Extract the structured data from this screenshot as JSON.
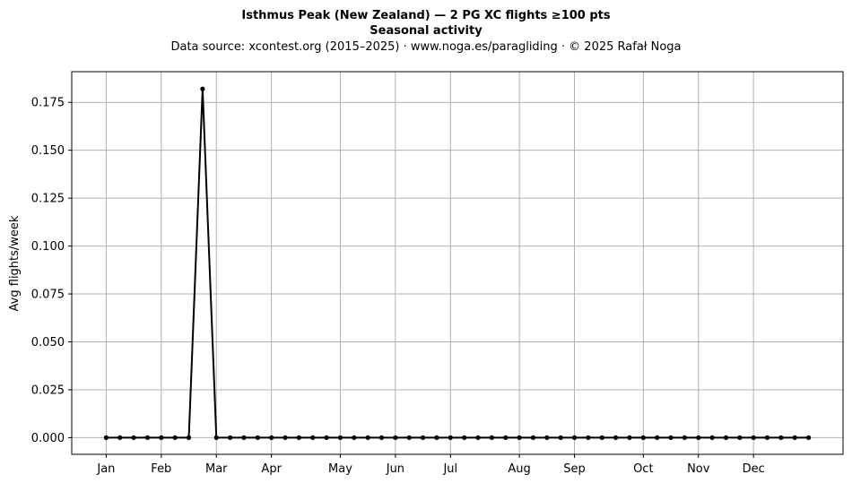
{
  "chart_data": {
    "type": "line",
    "title": "Isthmus Peak (New Zealand)  —  2 PG XC flights ≥100 pts",
    "subtitle": "Seasonal activity",
    "source": "Data source: xcontest.org (2015–2025)  ·  www.noga.es/paragliding  ·  © 2025 Rafał Noga",
    "xlabel": "",
    "ylabel": "Avg flights/week",
    "ylim": [
      -0.0087,
      0.191
    ],
    "xlim": [
      -2.5,
      53.5
    ],
    "grid": true,
    "x_ticks": [
      {
        "label": "Jan",
        "x": 0
      },
      {
        "label": "Feb",
        "x": 4
      },
      {
        "label": "Mar",
        "x": 8
      },
      {
        "label": "Apr",
        "x": 12
      },
      {
        "label": "May",
        "x": 17
      },
      {
        "label": "Jun",
        "x": 21
      },
      {
        "label": "Jul",
        "x": 25
      },
      {
        "label": "Aug",
        "x": 30
      },
      {
        "label": "Sep",
        "x": 34
      },
      {
        "label": "Oct",
        "x": 39
      },
      {
        "label": "Nov",
        "x": 43
      },
      {
        "label": "Dec",
        "x": 47
      }
    ],
    "y_ticks": [
      0.0,
      0.025,
      0.05,
      0.075,
      0.1,
      0.125,
      0.15,
      0.175
    ],
    "y_tick_labels": [
      "0.000",
      "0.025",
      "0.050",
      "0.075",
      "0.100",
      "0.125",
      "0.150",
      "0.175"
    ],
    "x": [
      0,
      1,
      2,
      3,
      4,
      5,
      6,
      7,
      8,
      9,
      10,
      11,
      12,
      13,
      14,
      15,
      16,
      17,
      18,
      19,
      20,
      21,
      22,
      23,
      24,
      25,
      26,
      27,
      28,
      29,
      30,
      31,
      32,
      33,
      34,
      35,
      36,
      37,
      38,
      39,
      40,
      41,
      42,
      43,
      44,
      45,
      46,
      47,
      48,
      49,
      50,
      51
    ],
    "values": [
      0,
      0,
      0,
      0,
      0,
      0,
      0,
      0.182,
      0,
      0,
      0,
      0,
      0,
      0,
      0,
      0,
      0,
      0,
      0,
      0,
      0,
      0,
      0,
      0,
      0,
      0,
      0,
      0,
      0,
      0,
      0,
      0,
      0,
      0,
      0,
      0,
      0,
      0,
      0,
      0,
      0,
      0,
      0,
      0,
      0,
      0,
      0,
      0,
      0,
      0,
      0,
      0
    ],
    "line_color": "#000000",
    "grid_color": "#b0b0b0"
  }
}
